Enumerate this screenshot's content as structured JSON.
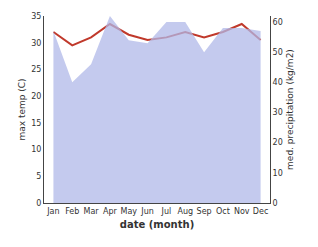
{
  "chart_data": {
    "type": "line",
    "categories": [
      "Jan",
      "Feb",
      "Mar",
      "Apr",
      "May",
      "Jun",
      "Jul",
      "Aug",
      "Sep",
      "Oct",
      "Nov",
      "Dec"
    ],
    "xlabel": "date (month)",
    "ylabel": "max temp (C)",
    "y2label": "med. precipitation (kg/m2)",
    "ylim": [
      0,
      35
    ],
    "yticks": [
      0,
      5,
      10,
      15,
      20,
      25,
      30,
      35
    ],
    "y2lim": [
      0,
      62
    ],
    "y2ticks": [
      0,
      10,
      20,
      30,
      40,
      50,
      60
    ],
    "grid": false,
    "series": [
      {
        "type": "area",
        "axis": "y2",
        "color": "#b0b8e8",
        "values": [
          57,
          40,
          46,
          62,
          54,
          53,
          60,
          60,
          50,
          58,
          58,
          57
        ]
      },
      {
        "type": "line",
        "color": "#c0392b",
        "values": [
          32.0,
          29.5,
          31.0,
          33.5,
          31.5,
          30.5,
          31.0,
          32.0,
          31.0,
          32.0,
          33.5,
          30.5
        ]
      }
    ]
  }
}
